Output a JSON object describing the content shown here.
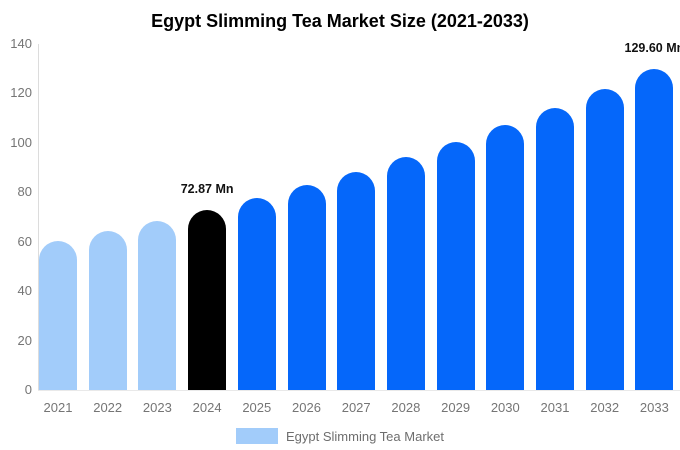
{
  "chart_data": {
    "type": "bar",
    "title": "Egypt Slimming Tea Market Size (2021-2033)",
    "unit": "Mn",
    "categories": [
      "2021",
      "2022",
      "2023",
      "2024",
      "2025",
      "2026",
      "2027",
      "2028",
      "2029",
      "2030",
      "2031",
      "2032",
      "2033"
    ],
    "values": [
      60.14,
      64.11,
      68.35,
      72.87,
      77.69,
      82.83,
      88.3,
      94.14,
      100.36,
      107.0,
      114.07,
      121.61,
      129.6
    ],
    "bar_segments": [
      "historical",
      "historical",
      "historical",
      "highlight",
      "forecast",
      "forecast",
      "forecast",
      "forecast",
      "forecast",
      "forecast",
      "forecast",
      "forecast",
      "forecast"
    ],
    "colors": {
      "historical": "#a2ccfa",
      "highlight": "#000000",
      "forecast": "#0567fa"
    },
    "ylim": [
      0,
      140
    ],
    "yticks": [
      0,
      20,
      40,
      60,
      80,
      100,
      120,
      140
    ],
    "grid": false,
    "tick_label_color": "#757575",
    "axis_color": "#dcdcdc",
    "annotations": [
      {
        "category": "2024",
        "text": "72.87 Mn"
      },
      {
        "category": "2033",
        "text": "129.60 Mn"
      }
    ],
    "legend": {
      "label": "Egypt Slimming Tea Market",
      "position": "bottom",
      "swatch_color": "#a2ccfa"
    }
  }
}
